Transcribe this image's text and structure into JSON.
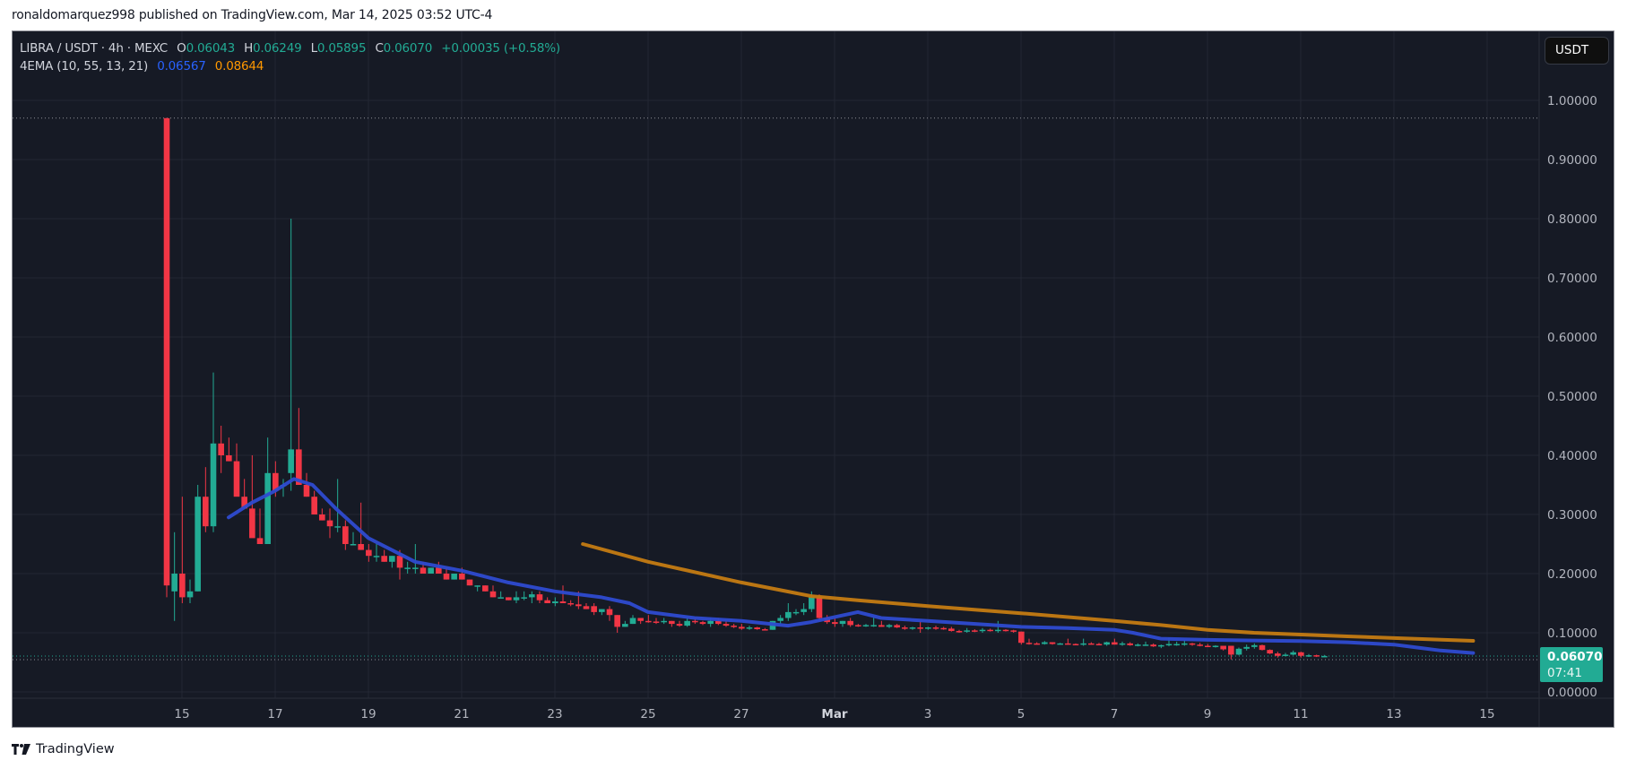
{
  "publisher_line": "ronaldomarquez998 published on TradingView.com, Mar 14, 2025 03:52 UTC-4",
  "legend": {
    "symbol": "LIBRA / USDT · 4h · MEXC",
    "open_label": "O",
    "open": "0.06043",
    "high_label": "H",
    "high": "0.06249",
    "low_label": "L",
    "low": "0.05895",
    "close_label": "C",
    "close": "0.06070",
    "change": "+0.00035 (+0.58%)",
    "indicator": "4EMA (10, 55, 13, 21)",
    "ema_blue": "0.06567",
    "ema_orange": "0.08644"
  },
  "currency_button": "USDT",
  "price_label": {
    "price": "0.06070",
    "countdown": "07:41"
  },
  "footer": {
    "brand": "TradingView"
  },
  "colors": {
    "background": "#161a25",
    "grid": "#232733",
    "up": "#22ab94",
    "down": "#f23645",
    "ema_blue": "#2e4bd0",
    "ema_orange": "#c47b12",
    "axis_text": "#b2b5be",
    "price_tag": "#22ab94"
  },
  "chart_data": {
    "type": "candlestick",
    "title": "LIBRA / USDT · 4h · MEXC",
    "xlabel": "",
    "ylabel": "USDT",
    "ylim": [
      0,
      1.05
    ],
    "y_ticks": [
      "1.00000",
      "0.90000",
      "0.80000",
      "0.70000",
      "0.60000",
      "0.50000",
      "0.40000",
      "0.30000",
      "0.20000",
      "0.10000",
      "0.00000"
    ],
    "x_ticks": [
      "15",
      "17",
      "19",
      "21",
      "23",
      "25",
      "27",
      "Mar",
      "3",
      "5",
      "7",
      "9",
      "11",
      "13",
      "15"
    ],
    "grid": true,
    "legend_position": "top-left",
    "max_price_line": 0.97,
    "last_price": 0.0607,
    "candles": [
      {
        "o": 0.97,
        "h": 0.97,
        "l": 0.16,
        "c": 0.18
      },
      {
        "o": 0.17,
        "h": 0.27,
        "l": 0.12,
        "c": 0.2
      },
      {
        "o": 0.2,
        "h": 0.33,
        "l": 0.15,
        "c": 0.16
      },
      {
        "o": 0.16,
        "h": 0.19,
        "l": 0.15,
        "c": 0.17
      },
      {
        "o": 0.17,
        "h": 0.35,
        "l": 0.17,
        "c": 0.33
      },
      {
        "o": 0.33,
        "h": 0.38,
        "l": 0.27,
        "c": 0.28
      },
      {
        "o": 0.28,
        "h": 0.54,
        "l": 0.27,
        "c": 0.42
      },
      {
        "o": 0.42,
        "h": 0.45,
        "l": 0.37,
        "c": 0.4
      },
      {
        "o": 0.4,
        "h": 0.43,
        "l": 0.39,
        "c": 0.39
      },
      {
        "o": 0.39,
        "h": 0.42,
        "l": 0.34,
        "c": 0.33
      },
      {
        "o": 0.33,
        "h": 0.36,
        "l": 0.32,
        "c": 0.31
      },
      {
        "o": 0.31,
        "h": 0.4,
        "l": 0.29,
        "c": 0.26
      },
      {
        "o": 0.26,
        "h": 0.31,
        "l": 0.25,
        "c": 0.25
      },
      {
        "o": 0.25,
        "h": 0.43,
        "l": 0.25,
        "c": 0.37
      },
      {
        "o": 0.37,
        "h": 0.39,
        "l": 0.33,
        "c": 0.34
      },
      {
        "o": 0.35,
        "h": 0.36,
        "l": 0.33,
        "c": 0.35
      },
      {
        "o": 0.37,
        "h": 0.8,
        "l": 0.34,
        "c": 0.41
      },
      {
        "o": 0.41,
        "h": 0.48,
        "l": 0.36,
        "c": 0.35
      },
      {
        "o": 0.35,
        "h": 0.37,
        "l": 0.33,
        "c": 0.33
      },
      {
        "o": 0.33,
        "h": 0.34,
        "l": 0.3,
        "c": 0.3
      },
      {
        "o": 0.3,
        "h": 0.31,
        "l": 0.29,
        "c": 0.29
      },
      {
        "o": 0.29,
        "h": 0.31,
        "l": 0.26,
        "c": 0.28
      },
      {
        "o": 0.28,
        "h": 0.36,
        "l": 0.27,
        "c": 0.28
      },
      {
        "o": 0.28,
        "h": 0.29,
        "l": 0.24,
        "c": 0.25
      },
      {
        "o": 0.25,
        "h": 0.27,
        "l": 0.25,
        "c": 0.25
      },
      {
        "o": 0.25,
        "h": 0.32,
        "l": 0.24,
        "c": 0.24
      },
      {
        "o": 0.24,
        "h": 0.25,
        "l": 0.22,
        "c": 0.23
      },
      {
        "o": 0.23,
        "h": 0.25,
        "l": 0.22,
        "c": 0.23
      },
      {
        "o": 0.23,
        "h": 0.24,
        "l": 0.22,
        "c": 0.22
      },
      {
        "o": 0.22,
        "h": 0.23,
        "l": 0.21,
        "c": 0.23
      },
      {
        "o": 0.23,
        "h": 0.24,
        "l": 0.19,
        "c": 0.21
      },
      {
        "o": 0.21,
        "h": 0.22,
        "l": 0.2,
        "c": 0.21
      },
      {
        "o": 0.21,
        "h": 0.25,
        "l": 0.2,
        "c": 0.21
      },
      {
        "o": 0.21,
        "h": 0.22,
        "l": 0.2,
        "c": 0.2
      },
      {
        "o": 0.2,
        "h": 0.21,
        "l": 0.2,
        "c": 0.21
      },
      {
        "o": 0.21,
        "h": 0.22,
        "l": 0.2,
        "c": 0.2
      },
      {
        "o": 0.2,
        "h": 0.21,
        "l": 0.19,
        "c": 0.19
      },
      {
        "o": 0.19,
        "h": 0.2,
        "l": 0.19,
        "c": 0.2
      },
      {
        "o": 0.2,
        "h": 0.21,
        "l": 0.19,
        "c": 0.19
      },
      {
        "o": 0.19,
        "h": 0.19,
        "l": 0.18,
        "c": 0.18
      },
      {
        "o": 0.18,
        "h": 0.18,
        "l": 0.17,
        "c": 0.18
      },
      {
        "o": 0.18,
        "h": 0.18,
        "l": 0.17,
        "c": 0.17
      },
      {
        "o": 0.17,
        "h": 0.18,
        "l": 0.16,
        "c": 0.16
      },
      {
        "o": 0.16,
        "h": 0.17,
        "l": 0.16,
        "c": 0.16
      },
      {
        "o": 0.16,
        "h": 0.16,
        "l": 0.155,
        "c": 0.155
      },
      {
        "o": 0.155,
        "h": 0.17,
        "l": 0.15,
        "c": 0.16
      },
      {
        "o": 0.16,
        "h": 0.17,
        "l": 0.155,
        "c": 0.16
      },
      {
        "o": 0.16,
        "h": 0.17,
        "l": 0.15,
        "c": 0.165
      },
      {
        "o": 0.165,
        "h": 0.17,
        "l": 0.15,
        "c": 0.155
      },
      {
        "o": 0.155,
        "h": 0.16,
        "l": 0.15,
        "c": 0.15
      },
      {
        "o": 0.15,
        "h": 0.16,
        "l": 0.145,
        "c": 0.153
      },
      {
        "o": 0.153,
        "h": 0.18,
        "l": 0.15,
        "c": 0.15
      },
      {
        "o": 0.15,
        "h": 0.155,
        "l": 0.145,
        "c": 0.148
      },
      {
        "o": 0.148,
        "h": 0.17,
        "l": 0.14,
        "c": 0.145
      },
      {
        "o": 0.145,
        "h": 0.15,
        "l": 0.14,
        "c": 0.14
      },
      {
        "o": 0.145,
        "h": 0.15,
        "l": 0.13,
        "c": 0.135
      },
      {
        "o": 0.135,
        "h": 0.14,
        "l": 0.13,
        "c": 0.14
      },
      {
        "o": 0.14,
        "h": 0.145,
        "l": 0.12,
        "c": 0.13
      },
      {
        "o": 0.13,
        "h": 0.13,
        "l": 0.1,
        "c": 0.11
      },
      {
        "o": 0.11,
        "h": 0.12,
        "l": 0.11,
        "c": 0.115
      },
      {
        "o": 0.115,
        "h": 0.13,
        "l": 0.115,
        "c": 0.125
      },
      {
        "o": 0.125,
        "h": 0.125,
        "l": 0.115,
        "c": 0.12
      },
      {
        "o": 0.12,
        "h": 0.13,
        "l": 0.117,
        "c": 0.119
      },
      {
        "o": 0.119,
        "h": 0.125,
        "l": 0.115,
        "c": 0.118
      },
      {
        "o": 0.118,
        "h": 0.125,
        "l": 0.115,
        "c": 0.12
      },
      {
        "o": 0.12,
        "h": 0.12,
        "l": 0.11,
        "c": 0.115
      },
      {
        "o": 0.115,
        "h": 0.12,
        "l": 0.11,
        "c": 0.112
      },
      {
        "o": 0.112,
        "h": 0.125,
        "l": 0.11,
        "c": 0.12
      },
      {
        "o": 0.12,
        "h": 0.125,
        "l": 0.115,
        "c": 0.118
      },
      {
        "o": 0.118,
        "h": 0.12,
        "l": 0.113,
        "c": 0.115
      },
      {
        "o": 0.115,
        "h": 0.125,
        "l": 0.11,
        "c": 0.12
      },
      {
        "o": 0.12,
        "h": 0.125,
        "l": 0.113,
        "c": 0.115
      },
      {
        "o": 0.115,
        "h": 0.12,
        "l": 0.11,
        "c": 0.112
      },
      {
        "o": 0.112,
        "h": 0.115,
        "l": 0.108,
        "c": 0.11
      },
      {
        "o": 0.11,
        "h": 0.115,
        "l": 0.105,
        "c": 0.107
      },
      {
        "o": 0.107,
        "h": 0.112,
        "l": 0.105,
        "c": 0.109
      },
      {
        "o": 0.109,
        "h": 0.11,
        "l": 0.105,
        "c": 0.106
      },
      {
        "o": 0.106,
        "h": 0.108,
        "l": 0.104,
        "c": 0.105
      },
      {
        "o": 0.105,
        "h": 0.12,
        "l": 0.105,
        "c": 0.12
      },
      {
        "o": 0.12,
        "h": 0.13,
        "l": 0.115,
        "c": 0.125
      },
      {
        "o": 0.125,
        "h": 0.15,
        "l": 0.12,
        "c": 0.135
      },
      {
        "o": 0.135,
        "h": 0.14,
        "l": 0.13,
        "c": 0.135
      },
      {
        "o": 0.135,
        "h": 0.15,
        "l": 0.13,
        "c": 0.14
      },
      {
        "o": 0.14,
        "h": 0.17,
        "l": 0.135,
        "c": 0.16
      },
      {
        "o": 0.16,
        "h": 0.165,
        "l": 0.12,
        "c": 0.125
      },
      {
        "o": 0.125,
        "h": 0.13,
        "l": 0.115,
        "c": 0.118
      },
      {
        "o": 0.118,
        "h": 0.125,
        "l": 0.11,
        "c": 0.115
      },
      {
        "o": 0.115,
        "h": 0.12,
        "l": 0.11,
        "c": 0.12
      },
      {
        "o": 0.12,
        "h": 0.125,
        "l": 0.11,
        "c": 0.113
      },
      {
        "o": 0.113,
        "h": 0.115,
        "l": 0.11,
        "c": 0.112
      },
      {
        "o": 0.112,
        "h": 0.115,
        "l": 0.11,
        "c": 0.113
      },
      {
        "o": 0.113,
        "h": 0.125,
        "l": 0.11,
        "c": 0.113
      },
      {
        "o": 0.113,
        "h": 0.12,
        "l": 0.11,
        "c": 0.11
      },
      {
        "o": 0.11,
        "h": 0.115,
        "l": 0.108,
        "c": 0.113
      },
      {
        "o": 0.113,
        "h": 0.115,
        "l": 0.108,
        "c": 0.109
      },
      {
        "o": 0.109,
        "h": 0.112,
        "l": 0.105,
        "c": 0.108
      },
      {
        "o": 0.108,
        "h": 0.11,
        "l": 0.105,
        "c": 0.109
      },
      {
        "o": 0.109,
        "h": 0.12,
        "l": 0.1,
        "c": 0.108
      },
      {
        "o": 0.108,
        "h": 0.11,
        "l": 0.105,
        "c": 0.109
      },
      {
        "o": 0.109,
        "h": 0.112,
        "l": 0.105,
        "c": 0.108
      },
      {
        "o": 0.108,
        "h": 0.11,
        "l": 0.105,
        "c": 0.107
      },
      {
        "o": 0.107,
        "h": 0.11,
        "l": 0.102,
        "c": 0.103
      },
      {
        "o": 0.103,
        "h": 0.105,
        "l": 0.1,
        "c": 0.102
      },
      {
        "o": 0.102,
        "h": 0.108,
        "l": 0.1,
        "c": 0.104
      },
      {
        "o": 0.104,
        "h": 0.106,
        "l": 0.101,
        "c": 0.103
      },
      {
        "o": 0.103,
        "h": 0.108,
        "l": 0.1,
        "c": 0.105
      },
      {
        "o": 0.105,
        "h": 0.107,
        "l": 0.102,
        "c": 0.104
      },
      {
        "o": 0.104,
        "h": 0.12,
        "l": 0.1,
        "c": 0.105
      },
      {
        "o": 0.105,
        "h": 0.106,
        "l": 0.102,
        "c": 0.104
      },
      {
        "o": 0.104,
        "h": 0.105,
        "l": 0.1,
        "c": 0.102
      },
      {
        "o": 0.102,
        "h": 0.102,
        "l": 0.08,
        "c": 0.083
      },
      {
        "o": 0.083,
        "h": 0.09,
        "l": 0.08,
        "c": 0.082
      },
      {
        "o": 0.082,
        "h": 0.084,
        "l": 0.08,
        "c": 0.081
      },
      {
        "o": 0.081,
        "h": 0.086,
        "l": 0.08,
        "c": 0.084
      },
      {
        "o": 0.084,
        "h": 0.084,
        "l": 0.08,
        "c": 0.081
      },
      {
        "o": 0.081,
        "h": 0.083,
        "l": 0.08,
        "c": 0.082
      },
      {
        "o": 0.082,
        "h": 0.09,
        "l": 0.08,
        "c": 0.081
      },
      {
        "o": 0.081,
        "h": 0.082,
        "l": 0.079,
        "c": 0.08
      },
      {
        "o": 0.08,
        "h": 0.09,
        "l": 0.078,
        "c": 0.082
      },
      {
        "o": 0.082,
        "h": 0.084,
        "l": 0.08,
        "c": 0.081
      },
      {
        "o": 0.081,
        "h": 0.083,
        "l": 0.079,
        "c": 0.08
      },
      {
        "o": 0.08,
        "h": 0.085,
        "l": 0.078,
        "c": 0.084
      },
      {
        "o": 0.084,
        "h": 0.09,
        "l": 0.08,
        "c": 0.08
      },
      {
        "o": 0.08,
        "h": 0.085,
        "l": 0.078,
        "c": 0.082
      },
      {
        "o": 0.082,
        "h": 0.084,
        "l": 0.078,
        "c": 0.079
      },
      {
        "o": 0.079,
        "h": 0.082,
        "l": 0.077,
        "c": 0.08
      },
      {
        "o": 0.08,
        "h": 0.085,
        "l": 0.078,
        "c": 0.08
      },
      {
        "o": 0.08,
        "h": 0.082,
        "l": 0.076,
        "c": 0.077
      },
      {
        "o": 0.077,
        "h": 0.08,
        "l": 0.074,
        "c": 0.079
      },
      {
        "o": 0.079,
        "h": 0.092,
        "l": 0.077,
        "c": 0.081
      },
      {
        "o": 0.081,
        "h": 0.085,
        "l": 0.078,
        "c": 0.081
      },
      {
        "o": 0.081,
        "h": 0.088,
        "l": 0.078,
        "c": 0.082
      },
      {
        "o": 0.082,
        "h": 0.083,
        "l": 0.078,
        "c": 0.08
      },
      {
        "o": 0.08,
        "h": 0.083,
        "l": 0.077,
        "c": 0.078
      },
      {
        "o": 0.078,
        "h": 0.081,
        "l": 0.076,
        "c": 0.077
      },
      {
        "o": 0.077,
        "h": 0.079,
        "l": 0.075,
        "c": 0.078
      },
      {
        "o": 0.078,
        "h": 0.078,
        "l": 0.07,
        "c": 0.072
      },
      {
        "o": 0.078,
        "h": 0.078,
        "l": 0.055,
        "c": 0.063
      },
      {
        "o": 0.063,
        "h": 0.075,
        "l": 0.062,
        "c": 0.073
      },
      {
        "o": 0.073,
        "h": 0.08,
        "l": 0.07,
        "c": 0.076
      },
      {
        "o": 0.076,
        "h": 0.082,
        "l": 0.073,
        "c": 0.079
      },
      {
        "o": 0.079,
        "h": 0.08,
        "l": 0.07,
        "c": 0.071
      },
      {
        "o": 0.071,
        "h": 0.072,
        "l": 0.064,
        "c": 0.065
      },
      {
        "o": 0.065,
        "h": 0.068,
        "l": 0.058,
        "c": 0.061
      },
      {
        "o": 0.061,
        "h": 0.066,
        "l": 0.06,
        "c": 0.063
      },
      {
        "o": 0.063,
        "h": 0.07,
        "l": 0.062,
        "c": 0.067
      },
      {
        "o": 0.067,
        "h": 0.068,
        "l": 0.058,
        "c": 0.061
      },
      {
        "o": 0.061,
        "h": 0.064,
        "l": 0.059,
        "c": 0.062
      },
      {
        "o": 0.062,
        "h": 0.063,
        "l": 0.059,
        "c": 0.06
      },
      {
        "o": 0.06043,
        "h": 0.06249,
        "l": 0.05895,
        "c": 0.0607
      }
    ],
    "series": [
      {
        "name": "EMA 10 (blue)",
        "color": "#2e4bd0",
        "points": [
          [
            16,
            0.295
          ],
          [
            16.5,
            0.32
          ],
          [
            17,
            0.34
          ],
          [
            17.4,
            0.36
          ],
          [
            17.8,
            0.35
          ],
          [
            18.3,
            0.31
          ],
          [
            19,
            0.26
          ],
          [
            20,
            0.22
          ],
          [
            21,
            0.205
          ],
          [
            22,
            0.185
          ],
          [
            23,
            0.17
          ],
          [
            24,
            0.16
          ],
          [
            24.6,
            0.15
          ],
          [
            25,
            0.135
          ],
          [
            26,
            0.125
          ],
          [
            27,
            0.12
          ],
          [
            28,
            0.112
          ],
          [
            28.5,
            0.118
          ],
          [
            29.5,
            0.135
          ],
          [
            30,
            0.125
          ],
          [
            31,
            0.12
          ],
          [
            33,
            0.11
          ],
          [
            34,
            0.108
          ],
          [
            35,
            0.105
          ],
          [
            35.4,
            0.1
          ],
          [
            36,
            0.09
          ],
          [
            37,
            0.088
          ],
          [
            38,
            0.087
          ],
          [
            39,
            0.086
          ],
          [
            40,
            0.084
          ],
          [
            41,
            0.08
          ],
          [
            41.5,
            0.075
          ],
          [
            42,
            0.07
          ],
          [
            42.7,
            0.0657
          ]
        ]
      },
      {
        "name": "EMA 55 (orange)",
        "color": "#c47b12",
        "points": [
          [
            23.6,
            0.25
          ],
          [
            25,
            0.22
          ],
          [
            27,
            0.185
          ],
          [
            28.5,
            0.162
          ],
          [
            29.5,
            0.155
          ],
          [
            31,
            0.145
          ],
          [
            33,
            0.133
          ],
          [
            35,
            0.12
          ],
          [
            36,
            0.113
          ],
          [
            37,
            0.105
          ],
          [
            38,
            0.1
          ],
          [
            39,
            0.097
          ],
          [
            40,
            0.094
          ],
          [
            41,
            0.091
          ],
          [
            42.7,
            0.0864
          ]
        ]
      }
    ]
  }
}
